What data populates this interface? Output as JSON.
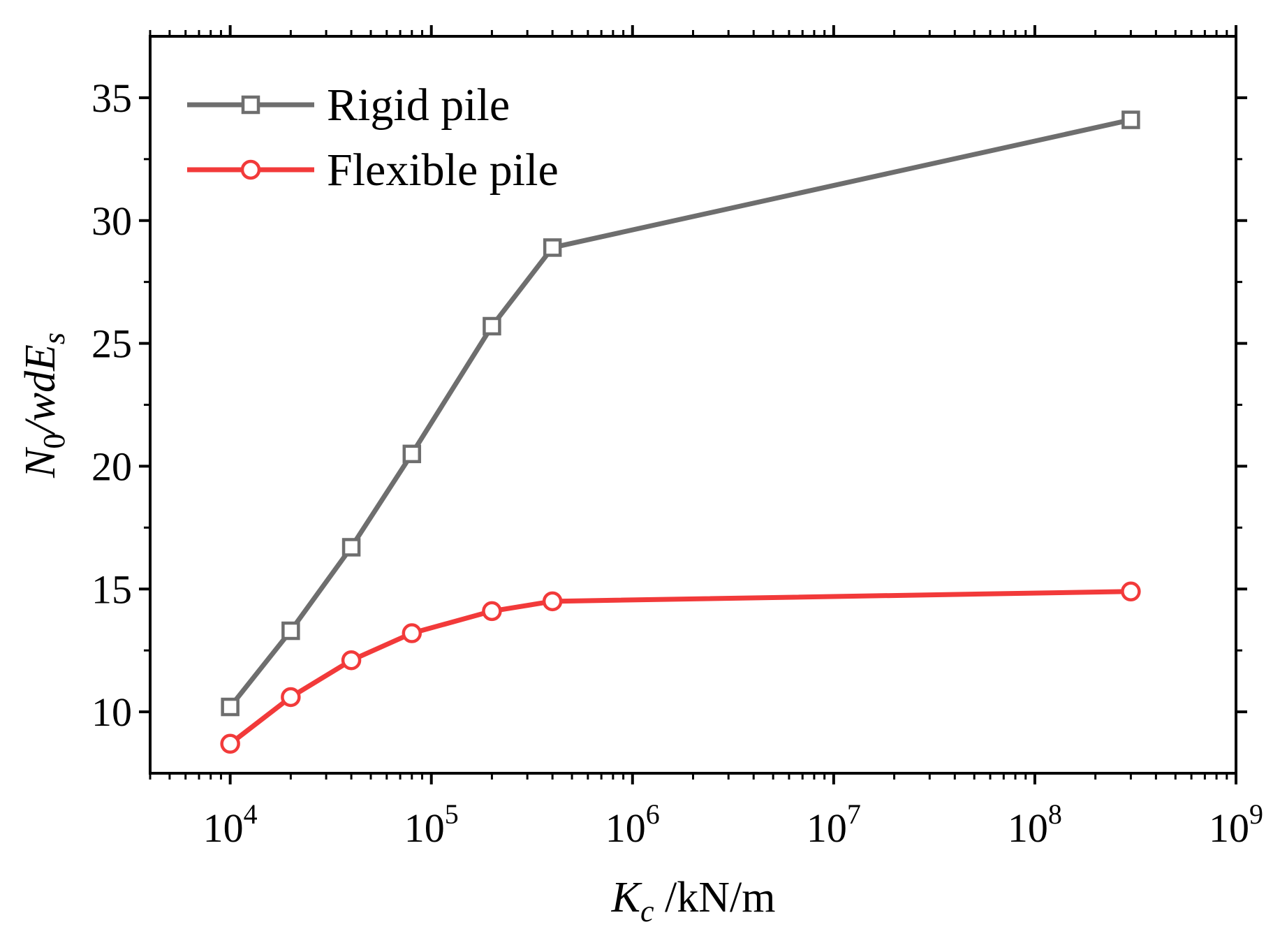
{
  "chart_data": {
    "type": "line",
    "x_scale": "log",
    "xlim": [
      4000,
      1000000000
    ],
    "ylim": [
      7.5,
      37.5
    ],
    "x_ticks": [
      {
        "value": 10000,
        "base": "10",
        "exp": "4"
      },
      {
        "value": 100000,
        "base": "10",
        "exp": "5"
      },
      {
        "value": 1000000,
        "base": "10",
        "exp": "6"
      },
      {
        "value": 10000000,
        "base": "10",
        "exp": "7"
      },
      {
        "value": 100000000,
        "base": "10",
        "exp": "8"
      },
      {
        "value": 1000000000,
        "base": "10",
        "exp": "9"
      }
    ],
    "y_ticks": [
      10,
      15,
      20,
      25,
      30,
      35
    ],
    "xlabel": {
      "symbol": "K",
      "sub": "c",
      "unit": " /kN/m"
    },
    "ylabel": {
      "symbol": "N",
      "sub": "0",
      "mid": "/wdE",
      "sub2": "s"
    },
    "x": [
      10000,
      20000,
      40000,
      80000,
      200000,
      400000,
      300000000
    ],
    "series": [
      {
        "name": "Rigid pile",
        "marker": "square",
        "color": "#6e6e6e",
        "values": [
          10.2,
          13.3,
          16.7,
          20.5,
          25.7,
          28.9,
          34.1
        ]
      },
      {
        "name": "Flexible pile",
        "marker": "circle",
        "color": "#f23a3a",
        "values": [
          8.7,
          10.6,
          12.1,
          13.2,
          14.1,
          14.5,
          14.9
        ]
      }
    ],
    "legend_position": "top-left"
  }
}
